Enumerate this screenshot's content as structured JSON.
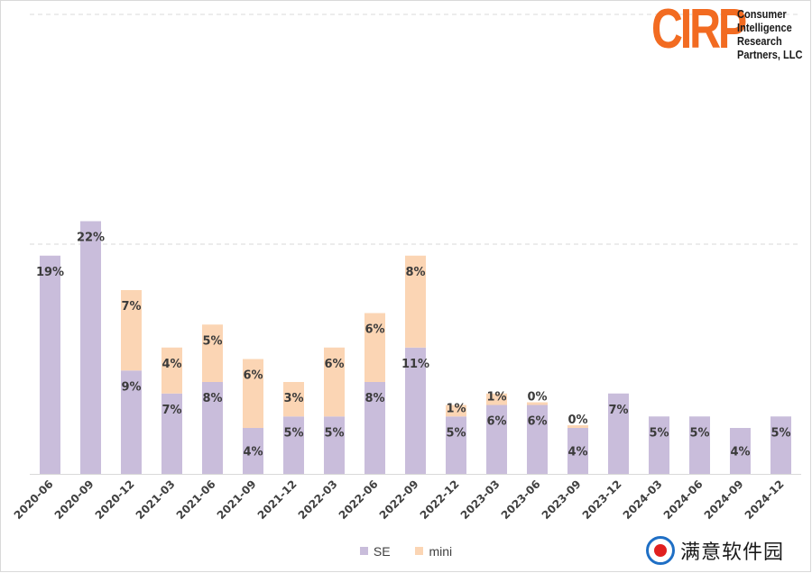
{
  "logo": {
    "mark": "CIRP",
    "lines": [
      "Consumer",
      "Intelligence",
      "Research",
      "Partners, LLC"
    ]
  },
  "watermark": {
    "text": "满意软件园"
  },
  "colors": {
    "se": "#c9bddb",
    "mini": "#fbd5b4",
    "label": "#3b3b3b",
    "axis": "#d9d9d9",
    "grid": "#d9d9d9"
  },
  "chart_data": {
    "type": "bar",
    "stacked": true,
    "categories": [
      "2020-06",
      "2020-09",
      "2020-12",
      "2021-03",
      "2021-06",
      "2021-09",
      "2021-12",
      "2022-03",
      "2022-06",
      "2022-09",
      "2022-12",
      "2023-03",
      "2023-06",
      "2023-09",
      "2023-12",
      "2024-03",
      "2024-06",
      "2024-09",
      "2024-12"
    ],
    "series": [
      {
        "name": "SE",
        "values": [
          19,
          22,
          9,
          7,
          8,
          4,
          5,
          5,
          8,
          11,
          5,
          6,
          6,
          4,
          7,
          5,
          5,
          4,
          5
        ],
        "labels": [
          "19%",
          "22%",
          "9%",
          "7%",
          "8%",
          "4%",
          "5%",
          "5%",
          "8%",
          "11%",
          "5%",
          "6%",
          "6%",
          "4%",
          "7%",
          "5%",
          "5%",
          "4%",
          "5%"
        ]
      },
      {
        "name": "mini",
        "values": [
          0,
          0,
          7,
          4,
          5,
          6,
          3,
          6,
          6,
          8,
          1,
          1,
          0,
          0,
          0,
          0,
          0,
          0,
          0
        ],
        "labels": [
          "",
          "",
          "7%",
          "4%",
          "5%",
          "6%",
          "3%",
          "6%",
          "6%",
          "8%",
          "1%",
          "1%",
          "0%",
          "0%",
          "",
          "",
          "",
          "",
          ""
        ]
      }
    ],
    "ylim": [
      0,
      40
    ],
    "gridlines": [
      20,
      40
    ],
    "legend": "bottom",
    "title": "",
    "xlabel": "",
    "ylabel": ""
  }
}
